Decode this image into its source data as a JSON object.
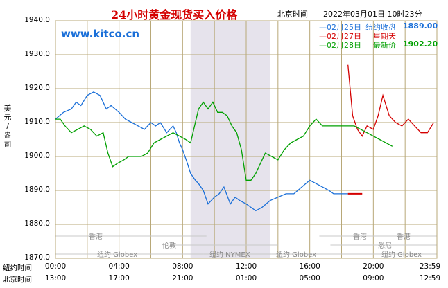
{
  "header": {
    "title": "24小时黄金现货买入价格",
    "timezone": "北京时间",
    "datetime": "2022年03月01日 10时23分",
    "site": "www.kitco.cn"
  },
  "legend": [
    {
      "date": "—02月25日",
      "label": "纽约收盘",
      "value": "1889.00",
      "color": "#1a6fd8"
    },
    {
      "date": "—02月27日",
      "label": "星期天",
      "value": "",
      "color": "#d40000"
    },
    {
      "date": "—02月28日",
      "label": "最新价",
      "value": "1902.20",
      "color": "#00a000"
    }
  ],
  "y_unit": [
    "美",
    "元",
    "/",
    "盎",
    "司"
  ],
  "time_rows": [
    {
      "label": "纽约时间",
      "ticks": [
        "00:00",
        "04:00",
        "08:00",
        "12:00",
        "16:00",
        "20:00",
        "23:59"
      ]
    },
    {
      "label": "北京时间",
      "ticks": [
        "13:00",
        "17:00",
        "21:00",
        "01:00",
        "05:00",
        "09:00",
        "12:59"
      ]
    }
  ],
  "markets": {
    "hongkong": "香港",
    "newyork_globex": "纽约 Globex",
    "london": "伦敦",
    "newyork_nymex": "纽约 NYMEX",
    "sydney": "悉尼"
  },
  "chart_data": {
    "type": "line",
    "xlabel": "",
    "ylabel": "美元/盎司",
    "x_unit": "hours (New York time)",
    "xlim": [
      0,
      24
    ],
    "ylim": [
      1870,
      1940
    ],
    "yticks": [
      1870,
      1880,
      1890,
      1900,
      1910,
      1920,
      1930,
      1940
    ],
    "ytick_labels": [
      "1870.0",
      "1880.0",
      "1890.0",
      "1900.0",
      "1910.0",
      "1920.0",
      "1930.0",
      "1940.0"
    ],
    "grid": true,
    "shaded_x_range": [
      8.5,
      13.5
    ],
    "series": [
      {
        "name": "02月25日",
        "color": "#1a6fd8",
        "x": [
          0,
          0.5,
          1,
          1.3,
          1.6,
          2,
          2.4,
          2.8,
          3.2,
          3.5,
          4,
          4.4,
          4.8,
          5.2,
          5.6,
          6,
          6.3,
          6.6,
          7,
          7.4,
          7.6,
          7.8,
          8,
          8.3,
          8.5,
          8.8,
          9,
          9.3,
          9.6,
          9.8,
          10,
          10.3,
          10.6,
          11,
          11.3,
          11.6,
          12,
          12.3,
          12.6,
          13,
          13.5,
          14,
          14.5,
          15,
          15.5,
          16,
          16.4,
          16.8,
          17.2,
          17.5,
          18,
          18.4
        ],
        "y": [
          1911,
          1913,
          1914,
          1916,
          1915,
          1918,
          1919,
          1918,
          1914,
          1915,
          1913,
          1911,
          1910,
          1909,
          1908,
          1910,
          1909,
          1910,
          1907,
          1909,
          1907,
          1904,
          1902,
          1898,
          1895,
          1893,
          1892,
          1890,
          1886,
          1887,
          1888,
          1889,
          1891,
          1886,
          1888,
          1887,
          1886,
          1885,
          1884,
          1885,
          1887,
          1888,
          1889,
          1889,
          1891,
          1893,
          1892,
          1891,
          1890,
          1889,
          1889,
          1889
        ]
      },
      {
        "name": "02月27日",
        "color": "#d40000",
        "x": [
          18.4,
          18.7,
          19,
          19.3,
          19.6,
          20,
          20.3,
          20.6,
          21,
          21.4,
          21.8,
          22.2,
          22.6,
          23,
          23.4,
          23.8
        ],
        "y": [
          1927,
          1912,
          1908,
          1906,
          1909,
          1908,
          1912,
          1918,
          1912,
          1910,
          1909,
          1911,
          1909,
          1907,
          1907,
          1910
        ]
      },
      {
        "name": "02月28日",
        "color": "#00a000",
        "x": [
          0,
          0.3,
          0.6,
          1,
          1.4,
          1.8,
          2.2,
          2.6,
          3,
          3.3,
          3.6,
          3.9,
          4.3,
          4.6,
          5,
          5.4,
          5.8,
          6.2,
          6.6,
          7,
          7.4,
          7.8,
          8.2,
          8.5,
          8.8,
          9,
          9.3,
          9.6,
          9.9,
          10.2,
          10.5,
          10.8,
          11.1,
          11.4,
          11.7,
          12,
          12.3,
          12.6,
          12.9,
          13.2,
          13.6,
          14,
          14.4,
          14.8,
          15.2,
          15.6,
          16,
          16.4,
          16.8,
          17.2,
          17.6,
          18,
          18.4,
          18.8,
          19.2,
          19.6,
          20,
          20.4,
          20.8,
          21.2
        ],
        "y": [
          1911,
          1911,
          1909,
          1907,
          1908,
          1909,
          1908,
          1906,
          1907,
          1901,
          1897,
          1898,
          1899,
          1900,
          1900,
          1900,
          1901,
          1904,
          1905,
          1906,
          1907,
          1906,
          1905,
          1904,
          1910,
          1914,
          1916,
          1914,
          1916,
          1913,
          1913,
          1912,
          1909,
          1907,
          1902,
          1893,
          1893,
          1895,
          1898,
          1901,
          1900,
          1899,
          1902,
          1904,
          1905,
          1906,
          1909,
          1911,
          1909,
          1909,
          1909,
          1909,
          1909,
          1909,
          1908,
          1907,
          1906,
          1905,
          1904,
          1903
        ]
      }
    ]
  }
}
